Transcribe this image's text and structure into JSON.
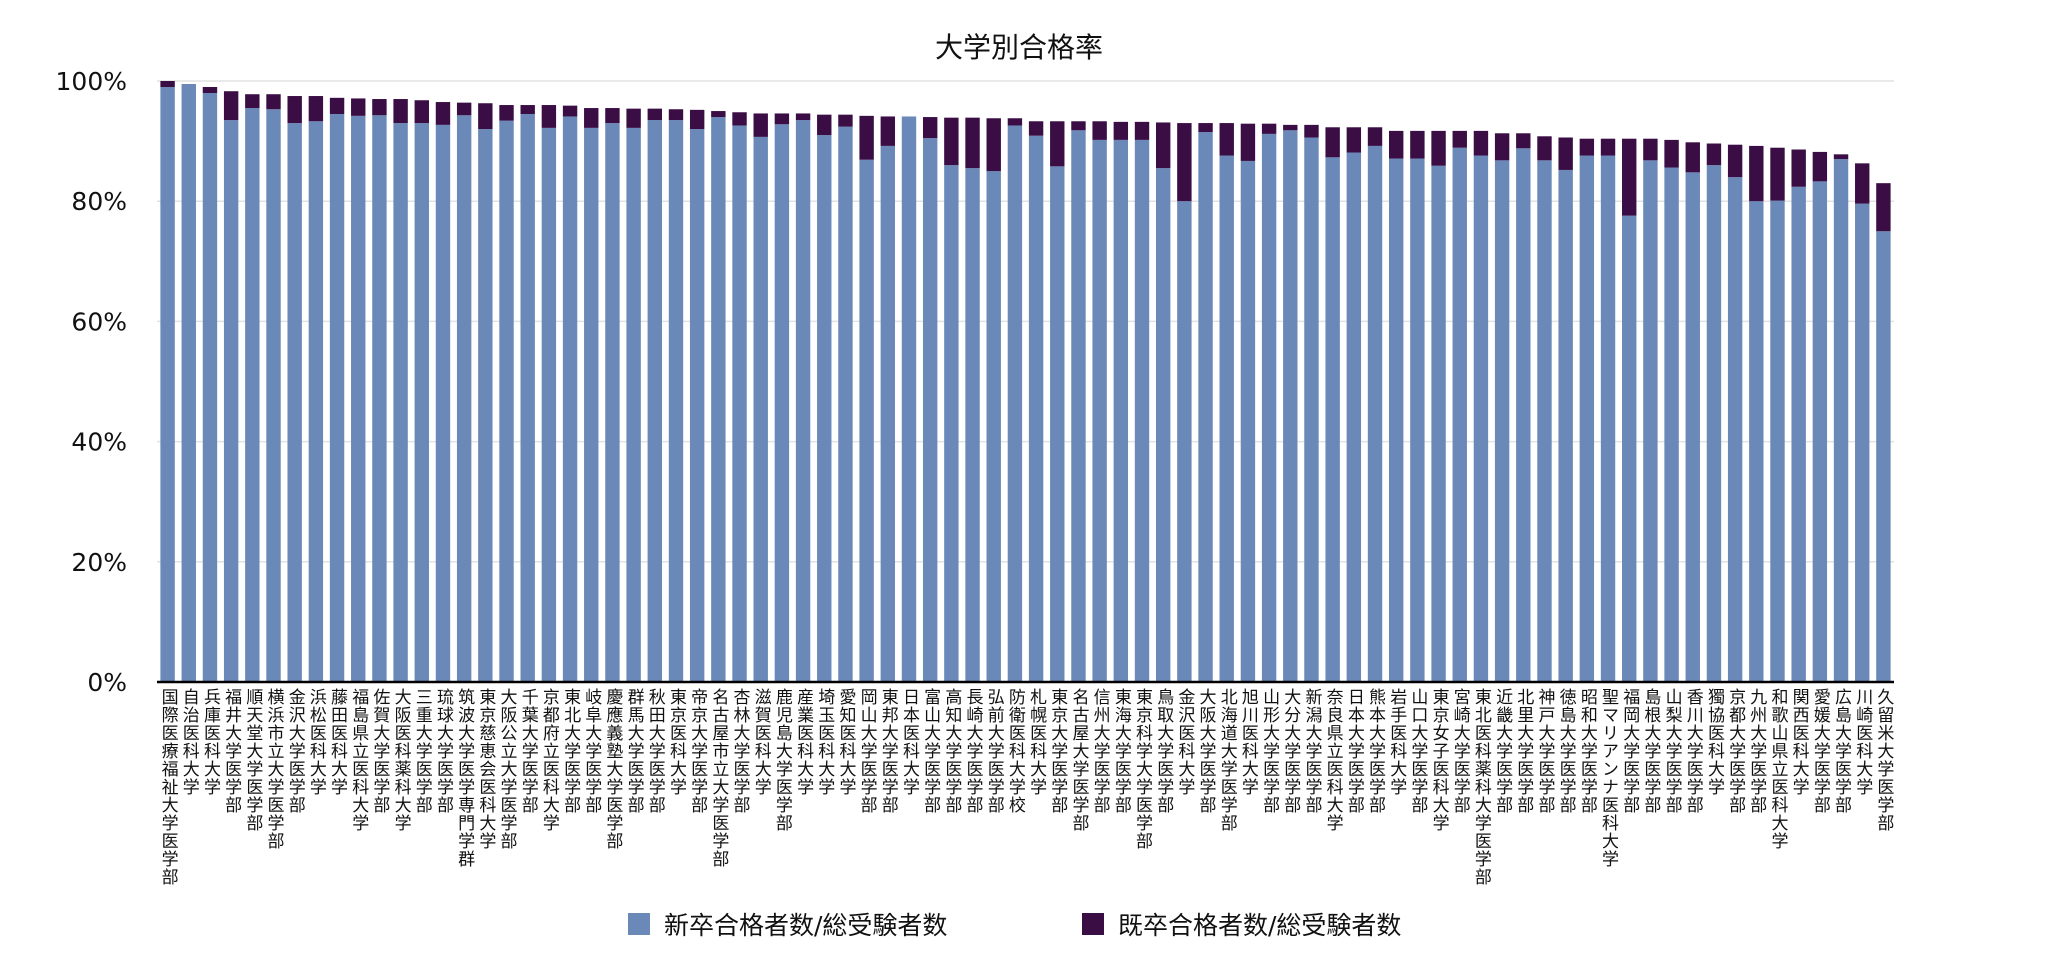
{
  "chart_data": {
    "type": "bar",
    "stacked": true,
    "title": "大学別合格率",
    "xlabel": "",
    "ylabel": "",
    "ylim": [
      0,
      100
    ],
    "yticks": [
      "0%",
      "20%",
      "40%",
      "60%",
      "80%",
      "100%"
    ],
    "ytick_values": [
      0,
      20,
      40,
      60,
      80,
      100
    ],
    "grid": true,
    "legend_position": "bottom",
    "colors": {
      "new": "#6b89b8",
      "old": "#3a0e45"
    },
    "categories": [
      "国際医療福祉大学医学部",
      "自治医科大学",
      "兵庫医科大学",
      "福井大学医学部",
      "順天堂大学医学部",
      "横浜市立大学医学部",
      "金沢大学医学部",
      "浜松医科大学",
      "藤田医科大学",
      "福島県立医科大学",
      "佐賀大学医学部",
      "大阪医科薬科大学",
      "三重大学医学部",
      "琉球大学医学部",
      "筑波大学医学専門学群",
      "東京慈恵会医科大学",
      "大阪公立大学医学部",
      "千葉大学医学部",
      "京都府立医科大学",
      "東北大学医学部",
      "岐阜大学医学部",
      "慶應義塾大学医学部",
      "群馬大学医学部",
      "秋田大学医学部",
      "東京医科大学",
      "帝京大学医学部",
      "名古屋市立大学医学部",
      "杏林大学医学部",
      "滋賀医科大学",
      "鹿児島大学医学部",
      "産業医科大学",
      "埼玉医科大学",
      "愛知医科大学",
      "岡山大学医学部",
      "東邦大学医学部",
      "日本医科大学",
      "富山大学医学部",
      "高知大学医学部",
      "長崎大学医学部",
      "弘前大学医学部",
      "防衛医科大学校",
      "札幌医科大学",
      "東京大学医学部",
      "名古屋大学医学部",
      "信州大学医学部",
      "東海大学医学部",
      "東京科学大学医学部",
      "鳥取大学医学部",
      "金沢医科大学",
      "大阪大学医学部",
      "北海道大学医学部",
      "旭川医科大学",
      "山形大学医学部",
      "大分大学医学部",
      "新潟大学医学部",
      "奈良県立医科大学",
      "日本大学医学部",
      "熊本大学医学部",
      "岩手医科大学",
      "山口大学医学部",
      "東京女子医科大学",
      "宮崎大学医学部",
      "東北医科薬科大学医学部",
      "近畿大学医学部",
      "北里大学医学部",
      "神戸大学医学部",
      "徳島大学医学部",
      "昭和大学医学部",
      "聖マリアンナ医科大学",
      "福岡大学医学部",
      "島根大学医学部",
      "山梨大学医学部",
      "香川大学医学部",
      "獨協医科大学",
      "京都大学医学部",
      "九州大学医学部",
      "和歌山県立医科大学",
      "関西医科大学",
      "愛媛大学医学部",
      "広島大学医学部",
      "川崎医科大学",
      "久留米大学医学部"
    ],
    "series": [
      {
        "name": "新卒合格者数/総受験者数",
        "values": [
          99.0,
          99.5,
          98.0,
          93.5,
          95.5,
          95.3,
          93.0,
          93.3,
          94.5,
          94.2,
          94.3,
          93.0,
          93.0,
          92.7,
          94.3,
          92.0,
          93.4,
          94.5,
          92.2,
          94.1,
          92.2,
          93.0,
          92.2,
          93.5,
          93.5,
          92.0,
          94.0,
          92.6,
          90.7,
          92.8,
          93.5,
          91.0,
          92.4,
          86.9,
          89.2,
          94.1,
          90.5,
          86.0,
          85.5,
          85.0,
          92.6,
          90.9,
          85.8,
          91.8,
          90.2,
          90.2,
          90.2,
          85.5,
          80.0,
          91.5,
          87.6,
          86.7,
          91.2,
          91.8,
          90.6,
          87.3,
          88.1,
          89.2,
          87.1,
          87.1,
          85.9,
          88.9,
          87.6,
          86.8,
          88.8,
          86.8,
          85.2,
          87.6,
          87.6,
          77.6,
          86.8,
          85.6,
          84.8,
          86.0,
          84.0,
          80.0,
          80.1,
          82.4,
          83.3,
          87.0,
          79.6,
          75.0
        ]
      },
      {
        "name": "既卒合格者数/総受験者数",
        "values": [
          1.0,
          0.0,
          1.0,
          4.8,
          2.3,
          2.5,
          4.5,
          4.2,
          2.7,
          2.9,
          2.7,
          4.0,
          3.8,
          3.8,
          2.1,
          4.3,
          2.6,
          1.5,
          3.8,
          1.8,
          3.3,
          2.5,
          3.2,
          1.9,
          1.8,
          3.2,
          1.0,
          2.2,
          3.9,
          1.8,
          1.1,
          3.4,
          2.0,
          7.3,
          4.9,
          0.0,
          3.5,
          7.9,
          8.4,
          8.8,
          1.2,
          2.4,
          7.5,
          1.5,
          3.1,
          3.0,
          3.0,
          7.6,
          13.0,
          1.5,
          5.4,
          6.2,
          1.7,
          0.9,
          2.1,
          5.0,
          4.2,
          3.1,
          4.6,
          4.6,
          5.8,
          2.8,
          4.1,
          4.5,
          2.5,
          4.0,
          5.4,
          2.8,
          2.8,
          12.8,
          3.6,
          4.6,
          5.0,
          3.6,
          5.4,
          9.2,
          8.8,
          6.2,
          4.9,
          0.8,
          6.7,
          8.0
        ]
      }
    ]
  }
}
